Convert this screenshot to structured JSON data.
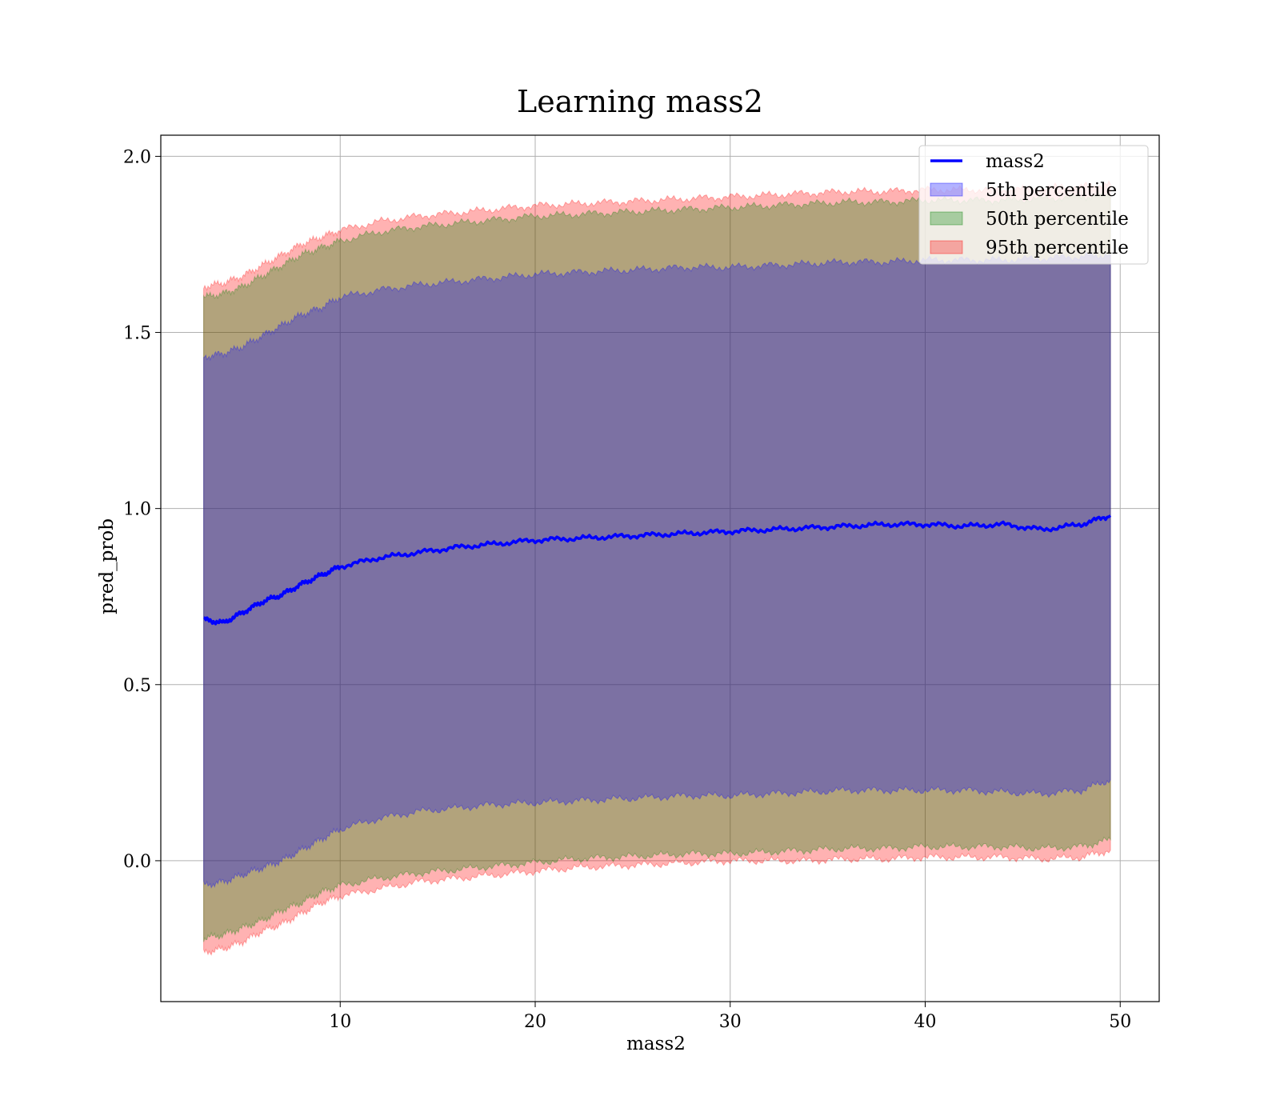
{
  "chart_data": {
    "type": "area",
    "title": "Learning mass2",
    "xlabel": "mass2",
    "ylabel": "pred_prob",
    "xlim": [
      0.8,
      52.0
    ],
    "ylim": [
      -0.4,
      2.06
    ],
    "xticks": [
      10,
      20,
      30,
      40,
      50
    ],
    "yticks": [
      0.0,
      0.5,
      1.0,
      1.5,
      2.0
    ],
    "xtick_labels": [
      "10",
      "20",
      "30",
      "40",
      "50"
    ],
    "ytick_labels": [
      "0.0",
      "0.5",
      "1.0",
      "1.5",
      "2.0"
    ],
    "grid": true,
    "legend_position": "top-right",
    "x": [
      3.0,
      4.0,
      5.0,
      6.0,
      7.0,
      8.0,
      9.0,
      10.0,
      12.0,
      14.0,
      16.0,
      18.0,
      20.0,
      22.0,
      24.0,
      26.0,
      28.0,
      30.0,
      32.0,
      34.0,
      36.0,
      38.0,
      40.0,
      42.0,
      44.0,
      46.0,
      48.0,
      49.5
    ],
    "series": [
      {
        "name": "mass2",
        "kind": "line",
        "color": "#0000ff",
        "values": [
          0.685,
          0.675,
          0.705,
          0.735,
          0.755,
          0.785,
          0.81,
          0.835,
          0.86,
          0.875,
          0.89,
          0.9,
          0.91,
          0.915,
          0.92,
          0.925,
          0.93,
          0.935,
          0.94,
          0.945,
          0.95,
          0.955,
          0.955,
          0.95,
          0.955,
          0.94,
          0.955,
          0.98
        ]
      },
      {
        "name": "5th percentile",
        "kind": "band",
        "color": "#0000ff",
        "lower": [
          -0.07,
          -0.06,
          -0.04,
          -0.02,
          0.0,
          0.03,
          0.06,
          0.09,
          0.12,
          0.14,
          0.15,
          0.16,
          0.165,
          0.17,
          0.175,
          0.18,
          0.185,
          0.185,
          0.19,
          0.195,
          0.2,
          0.2,
          0.2,
          0.2,
          0.195,
          0.19,
          0.2,
          0.23
        ],
        "upper": [
          1.43,
          1.44,
          1.46,
          1.49,
          1.52,
          1.55,
          1.57,
          1.6,
          1.62,
          1.635,
          1.645,
          1.655,
          1.665,
          1.67,
          1.675,
          1.68,
          1.685,
          1.685,
          1.69,
          1.695,
          1.7,
          1.7,
          1.705,
          1.705,
          1.705,
          1.71,
          1.715,
          1.72
        ]
      },
      {
        "name": "50th percentile",
        "kind": "band",
        "color": "#008000",
        "lower": [
          -0.22,
          -0.21,
          -0.19,
          -0.17,
          -0.14,
          -0.12,
          -0.09,
          -0.07,
          -0.05,
          -0.035,
          -0.025,
          -0.015,
          -0.005,
          0.005,
          0.01,
          0.015,
          0.02,
          0.02,
          0.025,
          0.03,
          0.035,
          0.035,
          0.04,
          0.04,
          0.04,
          0.035,
          0.04,
          0.06
        ],
        "upper": [
          1.6,
          1.61,
          1.63,
          1.66,
          1.69,
          1.72,
          1.74,
          1.76,
          1.785,
          1.8,
          1.81,
          1.82,
          1.83,
          1.835,
          1.84,
          1.845,
          1.85,
          1.855,
          1.86,
          1.865,
          1.87,
          1.87,
          1.875,
          1.875,
          1.875,
          1.88,
          1.885,
          1.89
        ]
      },
      {
        "name": "95th percentile",
        "kind": "band",
        "color": "#ff0000",
        "lower": [
          -0.26,
          -0.25,
          -0.23,
          -0.2,
          -0.18,
          -0.15,
          -0.12,
          -0.1,
          -0.08,
          -0.06,
          -0.05,
          -0.04,
          -0.03,
          -0.02,
          -0.015,
          -0.01,
          -0.005,
          0.0,
          0.0,
          0.0,
          0.005,
          0.005,
          0.01,
          0.01,
          0.01,
          0.005,
          0.01,
          0.03
        ],
        "upper": [
          1.63,
          1.64,
          1.66,
          1.69,
          1.72,
          1.75,
          1.77,
          1.79,
          1.815,
          1.83,
          1.84,
          1.85,
          1.86,
          1.865,
          1.87,
          1.875,
          1.88,
          1.885,
          1.89,
          1.895,
          1.9,
          1.9,
          1.905,
          1.905,
          1.905,
          1.91,
          1.915,
          1.92
        ]
      }
    ]
  }
}
